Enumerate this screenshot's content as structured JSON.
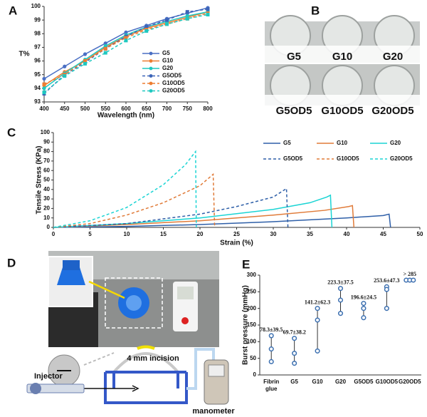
{
  "panel_labels": [
    "A",
    "B",
    "C",
    "D",
    "E"
  ],
  "well_labels": [
    "G5",
    "G10",
    "G20",
    "G5OD5",
    "G10OD5",
    "G20OD5"
  ],
  "diagram": {
    "incision": "4 mm incision",
    "injector": "Injector",
    "manometer": "manometer"
  },
  "chart_data": [
    {
      "type": "line",
      "xlabel": "Wavelength (nm)",
      "ylabel": "T%",
      "x": [
        400,
        450,
        500,
        550,
        600,
        650,
        700,
        750,
        800
      ],
      "xlim": [
        400,
        800
      ],
      "xticks": [
        400,
        450,
        500,
        550,
        600,
        650,
        700,
        750,
        800
      ],
      "ylim": [
        93,
        100
      ],
      "yticks": [
        93,
        94,
        95,
        96,
        97,
        98,
        99,
        100
      ],
      "legend": "lower-right",
      "markers": true,
      "series": [
        {
          "name": "G5",
          "color": "#4a6fc4",
          "dashed": false,
          "values": [
            94.7,
            95.6,
            96.5,
            97.3,
            98.1,
            98.6,
            99.1,
            99.5,
            99.9
          ]
        },
        {
          "name": "G10",
          "color": "#ed7d31",
          "dashed": false,
          "values": [
            94.2,
            95.2,
            96.0,
            97.0,
            97.8,
            98.4,
            98.8,
            99.2,
            99.6
          ]
        },
        {
          "name": "G20",
          "color": "#1fc8c0",
          "dashed": false,
          "values": [
            94.0,
            95.1,
            96.1,
            97.1,
            97.9,
            98.5,
            98.9,
            99.3,
            99.6
          ]
        },
        {
          "name": "G5OD5",
          "color": "#3b64b8",
          "dashed": true,
          "values": [
            93.6,
            95.0,
            95.9,
            96.9,
            97.8,
            98.5,
            99.0,
            99.6,
            99.8
          ]
        },
        {
          "name": "G10OD5",
          "color": "#ed7d31",
          "dashed": true,
          "values": [
            94.3,
            95.0,
            96.0,
            96.9,
            97.7,
            98.3,
            98.7,
            99.1,
            99.5
          ]
        },
        {
          "name": "G20OD5",
          "color": "#1fc8c0",
          "dashed": true,
          "values": [
            93.7,
            94.9,
            95.8,
            96.6,
            97.5,
            98.2,
            98.7,
            99.1,
            99.4
          ]
        }
      ]
    },
    {
      "type": "line",
      "xlabel": "Strain (%)",
      "ylabel": "Tensile Stress (KPa)",
      "xlim": [
        0,
        50
      ],
      "xticks": [
        0,
        5,
        10,
        15,
        20,
        25,
        30,
        35,
        40,
        45,
        50
      ],
      "ylim": [
        0,
        100
      ],
      "yticks": [
        0,
        10,
        20,
        30,
        40,
        50,
        60,
        70,
        80,
        90,
        100
      ],
      "legend": "upper-right",
      "markers": false,
      "series": [
        {
          "name": "G5",
          "color": "#2e5fa8",
          "dashed": false,
          "x": [
            0,
            10,
            20,
            30,
            40,
            45,
            45.8,
            46
          ],
          "values": [
            0,
            1,
            3,
            6,
            10,
            12.5,
            14,
            0
          ]
        },
        {
          "name": "G10",
          "color": "#e07b39",
          "dashed": false,
          "x": [
            0,
            10,
            20,
            30,
            37,
            40.3,
            40.8,
            41
          ],
          "values": [
            0,
            3,
            7,
            13,
            18,
            22,
            23,
            0
          ]
        },
        {
          "name": "G20",
          "color": "#1ad4d4",
          "dashed": false,
          "x": [
            0,
            10,
            20,
            30,
            35,
            37.3,
            37.8,
            38
          ],
          "values": [
            0,
            4,
            10,
            19,
            26,
            32,
            34,
            0
          ]
        },
        {
          "name": "G5OD5",
          "color": "#2e5fa8",
          "dashed": true,
          "x": [
            0,
            10,
            20,
            25,
            30,
            31.8,
            32
          ],
          "values": [
            0,
            4,
            14,
            22,
            32,
            41,
            0
          ]
        },
        {
          "name": "G10OD5",
          "color": "#e07b39",
          "dashed": true,
          "x": [
            0,
            5,
            10,
            15,
            20,
            21.8,
            22
          ],
          "values": [
            0,
            4,
            13,
            26,
            44,
            56,
            0
          ]
        },
        {
          "name": "G20OD5",
          "color": "#1ad4d4",
          "dashed": true,
          "x": [
            0,
            5,
            10,
            15,
            18,
            19.4,
            19.5
          ],
          "values": [
            0,
            7,
            21,
            45,
            66,
            80,
            0
          ]
        }
      ]
    },
    {
      "type": "range-dots",
      "ylabel": "Burst pressure (mmHg)",
      "categories": [
        "Fibrin glue",
        "G5",
        "G10",
        "G20",
        "G5OD5",
        "G10OD5",
        "G20OD5"
      ],
      "ylim": [
        0,
        300
      ],
      "yticks": [
        0,
        50,
        100,
        150,
        200,
        250,
        300
      ],
      "color": "#3b6fb0",
      "values": [
        [
          118,
          78,
          40
        ],
        [
          110,
          65,
          35
        ],
        [
          200,
          165,
          72
        ],
        [
          260,
          225,
          185
        ],
        [
          215,
          200,
          172
        ],
        [
          265,
          257,
          200
        ],
        [
          285,
          285,
          285
        ]
      ],
      "annotations": [
        "78.3±39.5",
        "69.7±38.2",
        "141.2±62.3",
        "223.3±37.5",
        "196.6±24.5",
        "253.6±47.3",
        "> 285"
      ]
    }
  ]
}
